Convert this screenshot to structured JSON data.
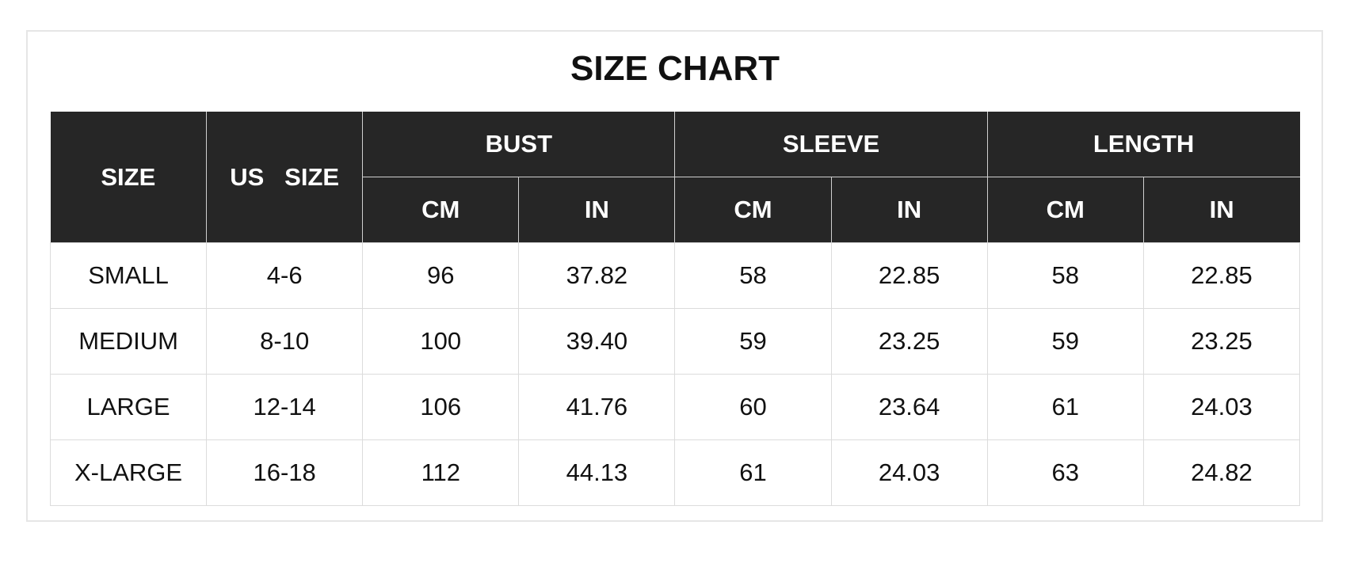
{
  "title": "SIZE CHART",
  "headers": {
    "size": "SIZE",
    "us_size": "US   SIZE",
    "groups": [
      "BUST",
      "SLEEVE",
      "LENGTH"
    ],
    "units": [
      "CM",
      "IN",
      "CM",
      "IN",
      "CM",
      "IN"
    ]
  },
  "rows": [
    [
      "SMALL",
      "4-6",
      "96",
      "37.82",
      "58",
      "22.85",
      "58",
      "22.85"
    ],
    [
      "MEDIUM",
      "8-10",
      "100",
      "39.40",
      "59",
      "23.25",
      "59",
      "23.25"
    ],
    [
      "LARGE",
      "12-14",
      "106",
      "41.76",
      "60",
      "23.64",
      "61",
      "24.03"
    ],
    [
      "X-LARGE",
      "16-18",
      "112",
      "44.13",
      "61",
      "24.03",
      "63",
      "24.82"
    ]
  ],
  "colors": {
    "header_bg": "#262626",
    "header_text": "#ffffff",
    "grid": "#dcdcdc"
  }
}
